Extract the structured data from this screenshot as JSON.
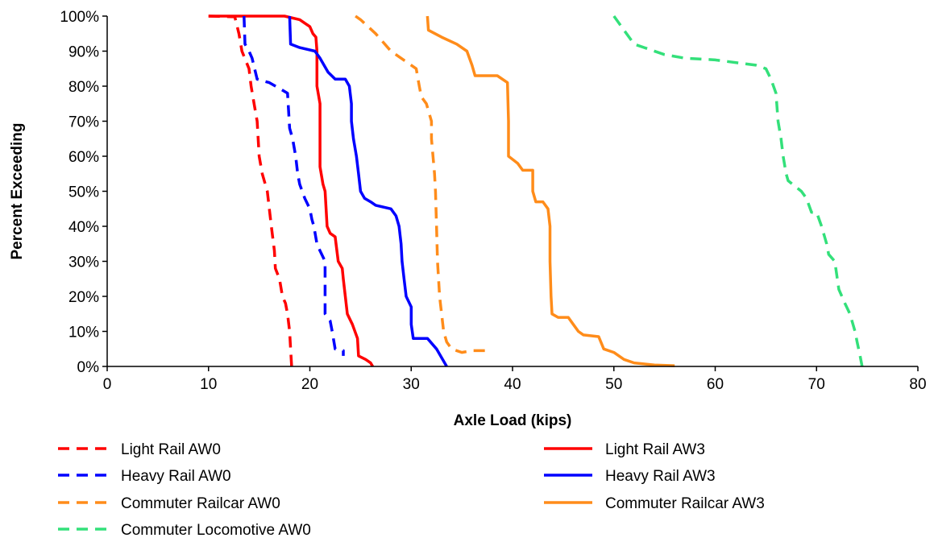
{
  "chart_data": {
    "type": "line",
    "title": "",
    "xlabel": "Axle Load (kips)",
    "ylabel": "Percent Exceeding",
    "xlim": [
      0,
      80
    ],
    "ylim": [
      0,
      100
    ],
    "x_ticks": [
      0,
      10,
      20,
      30,
      40,
      50,
      60,
      70,
      80
    ],
    "y_ticks": [
      0,
      10,
      20,
      30,
      40,
      50,
      60,
      70,
      80,
      90,
      100
    ],
    "x_tick_labels": [
      "0",
      "10",
      "20",
      "30",
      "40",
      "50",
      "60",
      "70",
      "80"
    ],
    "y_tick_labels": [
      "0%",
      "10%",
      "20%",
      "30%",
      "40%",
      "50%",
      "60%",
      "70%",
      "80%",
      "90%",
      "100%"
    ],
    "grid": false,
    "legend_position": "bottom",
    "series": [
      {
        "name": "Light Rail AW0",
        "color": "#ff0000",
        "dash": true,
        "points": [
          [
            10,
            100
          ],
          [
            12.6,
            99.8
          ],
          [
            13,
            95
          ],
          [
            13.3,
            90
          ],
          [
            14,
            85
          ],
          [
            14.2,
            80
          ],
          [
            14.5,
            75
          ],
          [
            14.8,
            70
          ],
          [
            15,
            60
          ],
          [
            15.3,
            55
          ],
          [
            15.8,
            50
          ],
          [
            16,
            45
          ],
          [
            16.2,
            40
          ],
          [
            16.5,
            33
          ],
          [
            16.6,
            28
          ],
          [
            17,
            25
          ],
          [
            17.3,
            20
          ],
          [
            17.6,
            18
          ],
          [
            17.8,
            15
          ],
          [
            18,
            10
          ],
          [
            18.1,
            5
          ],
          [
            18.2,
            0
          ]
        ]
      },
      {
        "name": "Light Rail AW3",
        "color": "#ff0000",
        "dash": false,
        "points": [
          [
            10,
            100
          ],
          [
            17.5,
            100
          ],
          [
            19,
            99
          ],
          [
            20,
            97
          ],
          [
            20.3,
            95
          ],
          [
            20.6,
            94
          ],
          [
            20.7,
            90
          ],
          [
            20.7,
            80
          ],
          [
            21,
            75
          ],
          [
            21,
            57
          ],
          [
            21.3,
            52
          ],
          [
            21.5,
            50
          ],
          [
            21.7,
            40
          ],
          [
            22,
            38
          ],
          [
            22.5,
            37
          ],
          [
            22.8,
            30
          ],
          [
            23.2,
            28
          ],
          [
            23.3,
            25
          ],
          [
            23.5,
            20
          ],
          [
            23.7,
            15
          ],
          [
            24.2,
            12
          ],
          [
            24.7,
            8
          ],
          [
            24.8,
            3
          ],
          [
            25.5,
            2
          ],
          [
            26,
            1
          ],
          [
            26.2,
            0
          ]
        ]
      },
      {
        "name": "Heavy Rail AW0",
        "color": "#0000ff",
        "dash": true,
        "points": [
          [
            13.5,
            100
          ],
          [
            13.6,
            92
          ],
          [
            14,
            90
          ],
          [
            14.3,
            88
          ],
          [
            14.8,
            82
          ],
          [
            16,
            81
          ],
          [
            17.2,
            79
          ],
          [
            17.8,
            78
          ],
          [
            18,
            68
          ],
          [
            18.3,
            65
          ],
          [
            18.6,
            60
          ],
          [
            18.8,
            55
          ],
          [
            19,
            52
          ],
          [
            19.5,
            48
          ],
          [
            20,
            45
          ],
          [
            20.2,
            42
          ],
          [
            20.4,
            40
          ],
          [
            20.7,
            35
          ],
          [
            21,
            33
          ],
          [
            21.5,
            30
          ],
          [
            21.5,
            15
          ],
          [
            22,
            13
          ],
          [
            22.2,
            10
          ],
          [
            22.5,
            5
          ],
          [
            23.3,
            4.5
          ],
          [
            23.3,
            3
          ]
        ]
      },
      {
        "name": "Heavy Rail AW3",
        "color": "#0000ff",
        "dash": false,
        "points": [
          [
            18,
            100
          ],
          [
            18.1,
            92
          ],
          [
            19,
            91
          ],
          [
            20.5,
            90
          ],
          [
            21,
            88
          ],
          [
            21.8,
            84
          ],
          [
            22.5,
            82
          ],
          [
            23.5,
            82
          ],
          [
            23.9,
            80
          ],
          [
            24.1,
            75
          ],
          [
            24.1,
            70
          ],
          [
            24.3,
            65
          ],
          [
            24.6,
            60
          ],
          [
            24.8,
            55
          ],
          [
            25,
            50
          ],
          [
            25.4,
            48
          ],
          [
            26,
            47
          ],
          [
            26.5,
            46
          ],
          [
            28,
            45
          ],
          [
            28.5,
            43
          ],
          [
            28.8,
            40
          ],
          [
            29,
            35
          ],
          [
            29.1,
            30
          ],
          [
            29.3,
            25
          ],
          [
            29.5,
            20
          ],
          [
            30,
            17
          ],
          [
            30,
            12
          ],
          [
            30.2,
            8
          ],
          [
            31.6,
            8
          ],
          [
            32.5,
            5
          ],
          [
            33.5,
            0
          ]
        ]
      },
      {
        "name": "Commuter Railcar AW0",
        "color": "#ff8c1a",
        "dash": true,
        "points": [
          [
            24.5,
            100
          ],
          [
            25,
            99
          ],
          [
            26.5,
            95
          ],
          [
            28,
            90
          ],
          [
            29.5,
            87
          ],
          [
            30.5,
            85
          ],
          [
            30.8,
            80
          ],
          [
            31,
            77
          ],
          [
            31.5,
            75
          ],
          [
            32,
            70
          ],
          [
            32,
            65
          ],
          [
            32.3,
            55
          ],
          [
            32.4,
            50
          ],
          [
            32.5,
            40
          ],
          [
            32.6,
            30
          ],
          [
            32.8,
            20
          ],
          [
            33,
            15
          ],
          [
            33.2,
            10
          ],
          [
            33.5,
            7
          ],
          [
            34,
            5
          ],
          [
            35,
            4
          ],
          [
            36,
            4.5
          ],
          [
            37.3,
            4.5
          ]
        ]
      },
      {
        "name": "Commuter Railcar AW3",
        "color": "#ff8c1a",
        "dash": false,
        "points": [
          [
            31.6,
            100
          ],
          [
            31.7,
            96
          ],
          [
            33,
            94
          ],
          [
            34.5,
            92
          ],
          [
            35.5,
            90
          ],
          [
            36,
            86
          ],
          [
            36.3,
            83
          ],
          [
            37,
            83
          ],
          [
            38.5,
            83
          ],
          [
            39.5,
            81
          ],
          [
            39.6,
            70
          ],
          [
            39.6,
            60
          ],
          [
            40.5,
            58
          ],
          [
            41,
            56
          ],
          [
            42,
            56
          ],
          [
            42,
            50
          ],
          [
            42.3,
            47
          ],
          [
            43,
            47
          ],
          [
            43.5,
            45
          ],
          [
            43.7,
            40
          ],
          [
            43.7,
            30
          ],
          [
            43.8,
            20
          ],
          [
            43.9,
            15
          ],
          [
            44.5,
            14
          ],
          [
            45.5,
            14
          ],
          [
            46,
            12
          ],
          [
            46.5,
            10
          ],
          [
            47,
            9
          ],
          [
            48.5,
            8.5
          ],
          [
            49,
            5
          ],
          [
            50,
            4
          ],
          [
            51,
            2
          ],
          [
            52,
            1
          ],
          [
            54,
            0.4
          ],
          [
            56,
            0.2
          ]
        ]
      },
      {
        "name": "Commuter Locomotive AW0",
        "color": "#33e07a",
        "dash": true,
        "points": [
          [
            50,
            100
          ],
          [
            51,
            96
          ],
          [
            52,
            92
          ],
          [
            53,
            91
          ],
          [
            55,
            89
          ],
          [
            57,
            88
          ],
          [
            60,
            87.5
          ],
          [
            64,
            86
          ],
          [
            65,
            85
          ],
          [
            65.5,
            82
          ],
          [
            66,
            78
          ],
          [
            66.2,
            70
          ],
          [
            66.5,
            65
          ],
          [
            66.7,
            60
          ],
          [
            67,
            55
          ],
          [
            67.2,
            53
          ],
          [
            68.5,
            50
          ],
          [
            69,
            48
          ],
          [
            69.5,
            44
          ],
          [
            70,
            44
          ],
          [
            70.5,
            40
          ],
          [
            71,
            35
          ],
          [
            71.2,
            32
          ],
          [
            71.8,
            30
          ],
          [
            72,
            26
          ],
          [
            72.2,
            22
          ],
          [
            72.8,
            18
          ],
          [
            73.3,
            15
          ],
          [
            73.8,
            10
          ],
          [
            74,
            7
          ],
          [
            74.3,
            3
          ],
          [
            74.5,
            0
          ]
        ]
      }
    ]
  }
}
